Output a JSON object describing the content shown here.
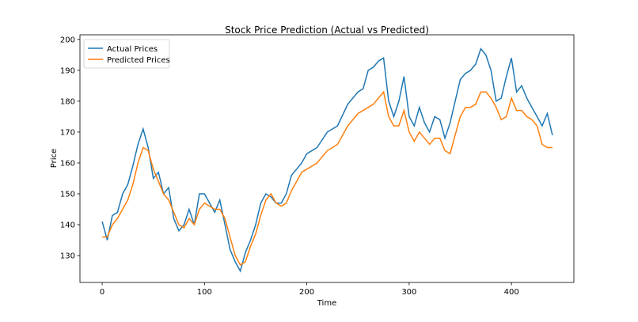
{
  "chart_data": {
    "type": "line",
    "title": "Stock Price Prediction (Actual vs Predicted)",
    "xlabel": "Time",
    "ylabel": "Price",
    "xlim": [
      -21.7,
      461
    ],
    "ylim": [
      121.3,
      201.5
    ],
    "xticks": [
      0,
      100,
      200,
      300,
      400
    ],
    "yticks": [
      130,
      140,
      150,
      160,
      170,
      180,
      190,
      200
    ],
    "grid": false,
    "legend_position": "top-left",
    "x": [
      0,
      5,
      10,
      15,
      20,
      25,
      30,
      35,
      40,
      45,
      50,
      55,
      60,
      65,
      70,
      75,
      80,
      85,
      90,
      95,
      100,
      105,
      110,
      115,
      120,
      125,
      130,
      135,
      140,
      145,
      150,
      155,
      160,
      165,
      170,
      175,
      180,
      185,
      190,
      195,
      200,
      210,
      220,
      230,
      240,
      250,
      255,
      260,
      265,
      270,
      275,
      280,
      285,
      290,
      295,
      300,
      305,
      310,
      315,
      320,
      325,
      330,
      335,
      340,
      345,
      350,
      355,
      360,
      365,
      370,
      375,
      380,
      385,
      390,
      395,
      400,
      405,
      410,
      415,
      420,
      425,
      430,
      435,
      440
    ],
    "series": [
      {
        "name": "Actual Prices",
        "color": "#1f77b4",
        "values": [
          141,
          135,
          143,
          144,
          150,
          153,
          159,
          166,
          171,
          165,
          155,
          157,
          150,
          152,
          142,
          138,
          140,
          145,
          140,
          150,
          150,
          147,
          144,
          148,
          140,
          132,
          128,
          125,
          131,
          135,
          140,
          147,
          150,
          149,
          147,
          147,
          150,
          156,
          158,
          160,
          163,
          165,
          170,
          172,
          179,
          183,
          184,
          190,
          191,
          193,
          194,
          180,
          175,
          180,
          188,
          175,
          172,
          178,
          173,
          170,
          175,
          174,
          168,
          173,
          180,
          187,
          189,
          190,
          192,
          197,
          195,
          190,
          180,
          181,
          188,
          194,
          183,
          185,
          181,
          178,
          175,
          172,
          176,
          169
        ]
      },
      {
        "name": "Predicted Prices",
        "color": "#ff7f0e",
        "values": [
          136,
          136,
          140,
          142,
          145,
          148,
          153,
          160,
          165,
          164,
          158,
          154,
          150,
          148,
          144,
          140,
          139,
          142,
          140,
          145,
          147,
          146,
          145,
          145,
          142,
          136,
          130,
          127,
          128,
          133,
          137,
          143,
          148,
          150,
          147,
          146,
          147,
          151,
          154,
          157,
          158,
          160,
          164,
          166,
          172,
          176,
          177,
          178,
          179,
          181,
          183,
          175,
          172,
          172,
          177,
          170,
          167,
          170,
          168,
          166,
          168,
          168,
          164,
          163,
          169,
          175,
          178,
          178,
          179,
          183,
          183,
          181,
          178,
          174,
          175,
          181,
          177,
          177,
          175,
          174,
          172,
          166,
          165,
          165
        ]
      }
    ]
  }
}
